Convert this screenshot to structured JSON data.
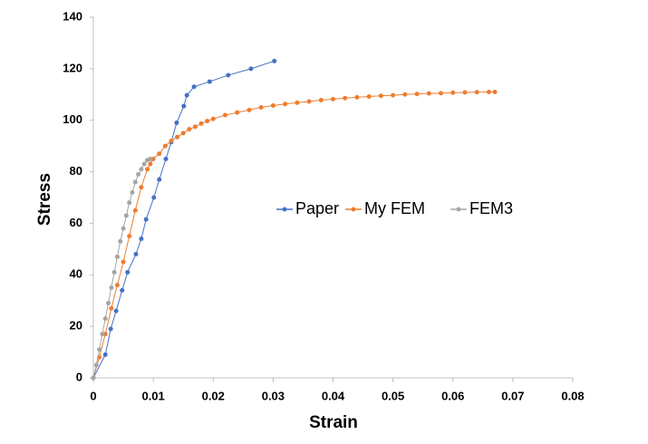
{
  "chart_data": {
    "type": "scatter",
    "x_label": "Strain",
    "y_label": "Stress",
    "xlim": [
      0,
      0.08
    ],
    "xticks": [
      0,
      0.01,
      0.02,
      0.03,
      0.04,
      0.05,
      0.06,
      0.07,
      0.08
    ],
    "ylim": [
      0,
      140
    ],
    "yticks": [
      0,
      20,
      40,
      60,
      80,
      100,
      120,
      140
    ],
    "grid": false,
    "legend_position": "center",
    "series": [
      {
        "name": "Paper",
        "color": "#4472c4",
        "x": [
          0,
          0.002,
          0.0029,
          0.0038,
          0.0048,
          0.0057,
          0.0071,
          0.008,
          0.0088,
          0.0101,
          0.011,
          0.0121,
          0.013,
          0.0139,
          0.0151,
          0.0156,
          0.0168,
          0.0194,
          0.0225,
          0.0263,
          0.0302
        ],
        "values": [
          0,
          9,
          19,
          26,
          34,
          41,
          48,
          54,
          61.5,
          70,
          77,
          85,
          91.5,
          99,
          105.5,
          109.7,
          113,
          115,
          117.5,
          120,
          123
        ]
      },
      {
        "name": "My FEM",
        "color": "#ed7d31",
        "x": [
          0,
          0.001,
          0.002,
          0.003,
          0.004,
          0.005,
          0.006,
          0.007,
          0.008,
          0.009,
          0.0095,
          0.01,
          0.011,
          0.012,
          0.013,
          0.014,
          0.015,
          0.016,
          0.017,
          0.018,
          0.019,
          0.02,
          0.022,
          0.024,
          0.026,
          0.028,
          0.03,
          0.032,
          0.034,
          0.036,
          0.038,
          0.04,
          0.042,
          0.044,
          0.046,
          0.048,
          0.05,
          0.052,
          0.054,
          0.056,
          0.058,
          0.06,
          0.062,
          0.064,
          0.066,
          0.067
        ],
        "values": [
          0,
          8,
          17,
          27,
          36,
          45,
          55,
          65,
          74,
          81,
          83,
          85,
          87,
          90,
          92,
          93.5,
          95,
          96.5,
          97.5,
          98.7,
          99.7,
          100.5,
          102,
          103,
          104,
          105,
          105.7,
          106.3,
          106.8,
          107.3,
          107.8,
          108.2,
          108.6,
          108.9,
          109.2,
          109.5,
          109.7,
          110,
          110.2,
          110.4,
          110.5,
          110.7,
          110.8,
          110.9,
          111,
          111
        ]
      },
      {
        "name": "FEM3",
        "color": "#a5a5a5",
        "x": [
          0,
          0.0005,
          0.001,
          0.0015,
          0.002,
          0.0025,
          0.003,
          0.0035,
          0.004,
          0.0045,
          0.005,
          0.0055,
          0.006,
          0.0065,
          0.007,
          0.0075,
          0.008,
          0.0085,
          0.009,
          0.0095
        ],
        "values": [
          0,
          5,
          11,
          17,
          23,
          29,
          35,
          41,
          47,
          53,
          58,
          63,
          68,
          72,
          76,
          79,
          81,
          83,
          84.5,
          85
        ]
      }
    ]
  }
}
